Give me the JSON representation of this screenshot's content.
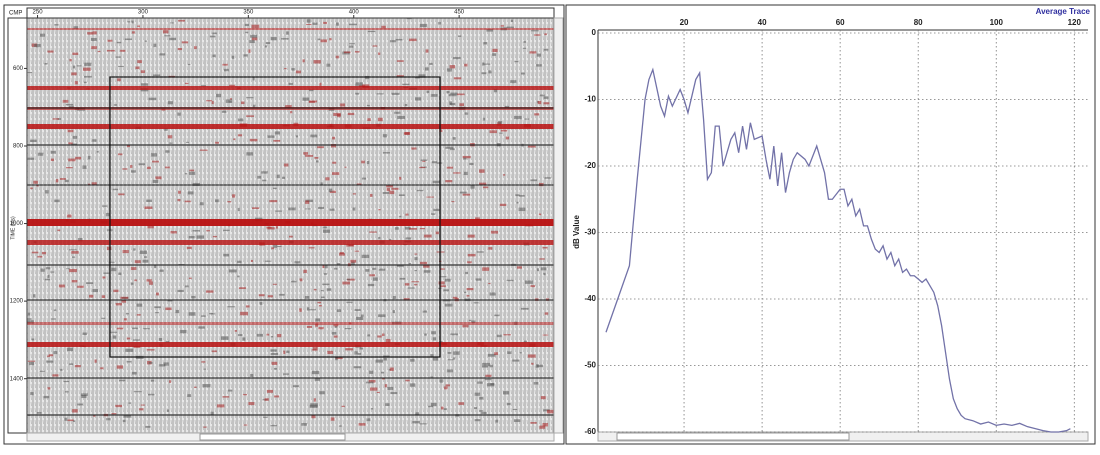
{
  "seismic_panel": {
    "x_label": "CMP",
    "y_label": "TIME (ms)",
    "xlim": [
      245,
      495
    ],
    "xticks": [
      250,
      300,
      350,
      400,
      450
    ],
    "ylim": [
      1540,
      470
    ],
    "yticks": [
      600,
      800,
      1000,
      1200,
      1400
    ]
  },
  "chart_data": {
    "type": "line",
    "title": "Average Trace",
    "y_label": "dB Value",
    "color": "#7272a8",
    "x": [
      0,
      3,
      6,
      8,
      10,
      11,
      12,
      14,
      15,
      16,
      17,
      19,
      20,
      21,
      23,
      24,
      25,
      26,
      27,
      28,
      29,
      30,
      31,
      32,
      33,
      34,
      35,
      36,
      37,
      38,
      40,
      41,
      42,
      43,
      44,
      45,
      46,
      47,
      48,
      49,
      51,
      52,
      54,
      56,
      57,
      58,
      60,
      61,
      62,
      63,
      64,
      65,
      66,
      67,
      68,
      69,
      70,
      71,
      72,
      73,
      74,
      75,
      76,
      77,
      78,
      79,
      80,
      81,
      82,
      83,
      84,
      85,
      86,
      87,
      88,
      89,
      90,
      91,
      92,
      94,
      96,
      98,
      100,
      102,
      104,
      106,
      108,
      110,
      112,
      114,
      116,
      118,
      119
    ],
    "values": [
      -45,
      -40,
      -35,
      -22,
      -10,
      -7,
      -5.5,
      -11,
      -12.5,
      -9.5,
      -11,
      -8.5,
      -10,
      -12,
      -7,
      -6,
      -13,
      -22,
      -21,
      -14,
      -14,
      -20,
      -18,
      -16,
      -15,
      -18,
      -14,
      -17.5,
      -13.5,
      -16,
      -15.5,
      -19,
      -22,
      -17,
      -23,
      -18,
      -24,
      -21,
      -19,
      -18,
      -19,
      -20,
      -17,
      -21,
      -25,
      -25,
      -23.5,
      -23.5,
      -26,
      -25,
      -27.5,
      -26.5,
      -29,
      -29,
      -31,
      -32.5,
      -33,
      -32,
      -34,
      -33,
      -35,
      -34,
      -36,
      -35.5,
      -36.5,
      -36.5,
      -37,
      -37.5,
      -37,
      -38,
      -39,
      -41,
      -44,
      -48,
      -52,
      -55,
      -56.5,
      -57.5,
      -58,
      -58.3,
      -58.8,
      -58.5,
      -59,
      -58.8,
      -59,
      -58.7,
      -59.2,
      -59.5,
      -59.8,
      -60,
      -60,
      -59.8,
      -59.5
    ],
    "xlim": [
      0,
      123
    ],
    "xticks": [
      20,
      40,
      60,
      80,
      100,
      120
    ],
    "ylim": [
      -60,
      0
    ],
    "yticks": [
      0,
      -10,
      -20,
      -30,
      -40,
      -50,
      -60
    ],
    "grid": true
  }
}
